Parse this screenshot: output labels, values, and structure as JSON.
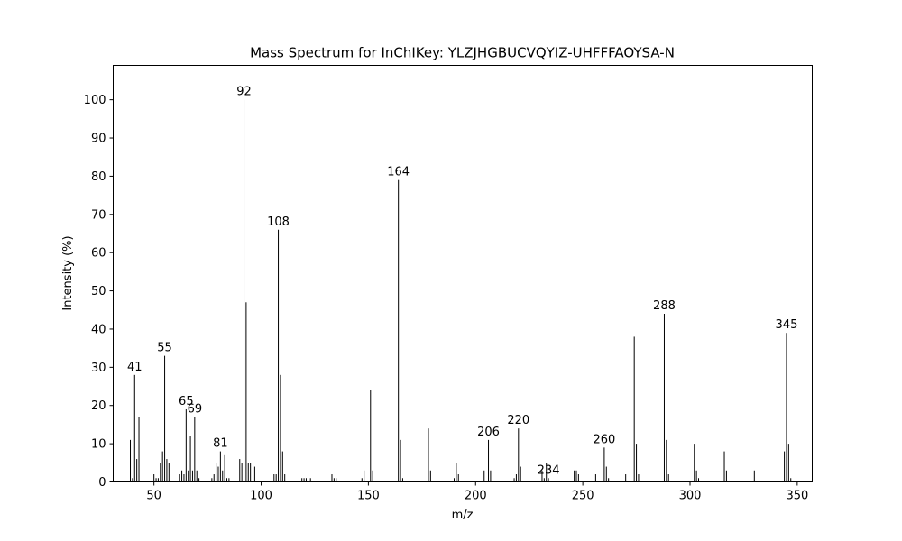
{
  "chart_data": {
    "type": "bar",
    "title": "Mass Spectrum for InChIKey: YLZJHGBUCVQYIZ-UHFFFAOYSA-N",
    "xlabel": "m/z",
    "ylabel": "Intensity (%)",
    "xlim": [
      31,
      357
    ],
    "ylim": [
      0,
      109
    ],
    "xticks": [
      50,
      100,
      150,
      200,
      250,
      300,
      350
    ],
    "yticks": [
      0,
      10,
      20,
      30,
      40,
      50,
      60,
      70,
      80,
      90,
      100
    ],
    "grid": false,
    "bar_color": "#000000",
    "points": [
      {
        "mz": 39,
        "intensity": 11
      },
      {
        "mz": 40,
        "intensity": 1
      },
      {
        "mz": 41,
        "intensity": 28
      },
      {
        "mz": 42,
        "intensity": 6
      },
      {
        "mz": 43,
        "intensity": 17
      },
      {
        "mz": 50,
        "intensity": 2
      },
      {
        "mz": 51,
        "intensity": 1
      },
      {
        "mz": 52,
        "intensity": 1
      },
      {
        "mz": 53,
        "intensity": 5
      },
      {
        "mz": 54,
        "intensity": 8
      },
      {
        "mz": 55,
        "intensity": 33
      },
      {
        "mz": 56,
        "intensity": 6
      },
      {
        "mz": 57,
        "intensity": 5
      },
      {
        "mz": 62,
        "intensity": 2
      },
      {
        "mz": 63,
        "intensity": 3
      },
      {
        "mz": 64,
        "intensity": 2
      },
      {
        "mz": 65,
        "intensity": 19
      },
      {
        "mz": 66,
        "intensity": 3
      },
      {
        "mz": 67,
        "intensity": 12
      },
      {
        "mz": 68,
        "intensity": 3
      },
      {
        "mz": 69,
        "intensity": 17
      },
      {
        "mz": 70,
        "intensity": 3
      },
      {
        "mz": 71,
        "intensity": 1
      },
      {
        "mz": 77,
        "intensity": 1
      },
      {
        "mz": 78,
        "intensity": 2
      },
      {
        "mz": 79,
        "intensity": 5
      },
      {
        "mz": 80,
        "intensity": 4
      },
      {
        "mz": 81,
        "intensity": 8
      },
      {
        "mz": 82,
        "intensity": 3
      },
      {
        "mz": 83,
        "intensity": 7
      },
      {
        "mz": 84,
        "intensity": 1
      },
      {
        "mz": 85,
        "intensity": 1
      },
      {
        "mz": 90,
        "intensity": 6
      },
      {
        "mz": 91,
        "intensity": 5
      },
      {
        "mz": 92,
        "intensity": 100
      },
      {
        "mz": 93,
        "intensity": 47
      },
      {
        "mz": 94,
        "intensity": 5
      },
      {
        "mz": 95,
        "intensity": 5
      },
      {
        "mz": 97,
        "intensity": 4
      },
      {
        "mz": 106,
        "intensity": 2
      },
      {
        "mz": 107,
        "intensity": 2
      },
      {
        "mz": 108,
        "intensity": 66
      },
      {
        "mz": 109,
        "intensity": 28
      },
      {
        "mz": 110,
        "intensity": 8
      },
      {
        "mz": 111,
        "intensity": 2
      },
      {
        "mz": 119,
        "intensity": 1
      },
      {
        "mz": 120,
        "intensity": 1
      },
      {
        "mz": 121,
        "intensity": 1
      },
      {
        "mz": 123,
        "intensity": 1
      },
      {
        "mz": 133,
        "intensity": 2
      },
      {
        "mz": 134,
        "intensity": 1
      },
      {
        "mz": 135,
        "intensity": 1
      },
      {
        "mz": 147,
        "intensity": 1
      },
      {
        "mz": 148,
        "intensity": 3
      },
      {
        "mz": 151,
        "intensity": 24
      },
      {
        "mz": 152,
        "intensity": 3
      },
      {
        "mz": 164,
        "intensity": 79
      },
      {
        "mz": 165,
        "intensity": 11
      },
      {
        "mz": 166,
        "intensity": 1
      },
      {
        "mz": 178,
        "intensity": 14
      },
      {
        "mz": 179,
        "intensity": 3
      },
      {
        "mz": 190,
        "intensity": 1
      },
      {
        "mz": 191,
        "intensity": 5
      },
      {
        "mz": 192,
        "intensity": 2
      },
      {
        "mz": 204,
        "intensity": 3
      },
      {
        "mz": 206,
        "intensity": 11
      },
      {
        "mz": 207,
        "intensity": 3
      },
      {
        "mz": 218,
        "intensity": 1
      },
      {
        "mz": 219,
        "intensity": 2
      },
      {
        "mz": 220,
        "intensity": 14
      },
      {
        "mz": 221,
        "intensity": 4
      },
      {
        "mz": 231,
        "intensity": 3
      },
      {
        "mz": 232,
        "intensity": 1
      },
      {
        "mz": 233,
        "intensity": 5
      },
      {
        "mz": 234,
        "intensity": 1
      },
      {
        "mz": 246,
        "intensity": 3
      },
      {
        "mz": 247,
        "intensity": 3
      },
      {
        "mz": 248,
        "intensity": 2
      },
      {
        "mz": 256,
        "intensity": 2
      },
      {
        "mz": 260,
        "intensity": 9
      },
      {
        "mz": 261,
        "intensity": 4
      },
      {
        "mz": 262,
        "intensity": 1
      },
      {
        "mz": 270,
        "intensity": 2
      },
      {
        "mz": 274,
        "intensity": 38
      },
      {
        "mz": 275,
        "intensity": 10
      },
      {
        "mz": 276,
        "intensity": 2
      },
      {
        "mz": 288,
        "intensity": 44
      },
      {
        "mz": 289,
        "intensity": 11
      },
      {
        "mz": 290,
        "intensity": 2
      },
      {
        "mz": 302,
        "intensity": 10
      },
      {
        "mz": 303,
        "intensity": 3
      },
      {
        "mz": 304,
        "intensity": 1
      },
      {
        "mz": 316,
        "intensity": 8
      },
      {
        "mz": 317,
        "intensity": 3
      },
      {
        "mz": 330,
        "intensity": 3
      },
      {
        "mz": 344,
        "intensity": 8
      },
      {
        "mz": 345,
        "intensity": 39
      },
      {
        "mz": 346,
        "intensity": 10
      },
      {
        "mz": 347,
        "intensity": 1
      }
    ],
    "peak_labels": [
      {
        "mz": 41,
        "intensity": 28,
        "text": "41"
      },
      {
        "mz": 55,
        "intensity": 33,
        "text": "55"
      },
      {
        "mz": 65,
        "intensity": 19,
        "text": "65"
      },
      {
        "mz": 69,
        "intensity": 17,
        "text": "69"
      },
      {
        "mz": 81,
        "intensity": 8,
        "text": "81"
      },
      {
        "mz": 92,
        "intensity": 100,
        "text": "92"
      },
      {
        "mz": 108,
        "intensity": 66,
        "text": "108"
      },
      {
        "mz": 164,
        "intensity": 79,
        "text": "164"
      },
      {
        "mz": 206,
        "intensity": 11,
        "text": "206"
      },
      {
        "mz": 220,
        "intensity": 14,
        "text": "220"
      },
      {
        "mz": 234,
        "intensity": 1,
        "text": "234"
      },
      {
        "mz": 260,
        "intensity": 9,
        "text": "260"
      },
      {
        "mz": 288,
        "intensity": 44,
        "text": "288"
      },
      {
        "mz": 345,
        "intensity": 39,
        "text": "345"
      }
    ]
  }
}
